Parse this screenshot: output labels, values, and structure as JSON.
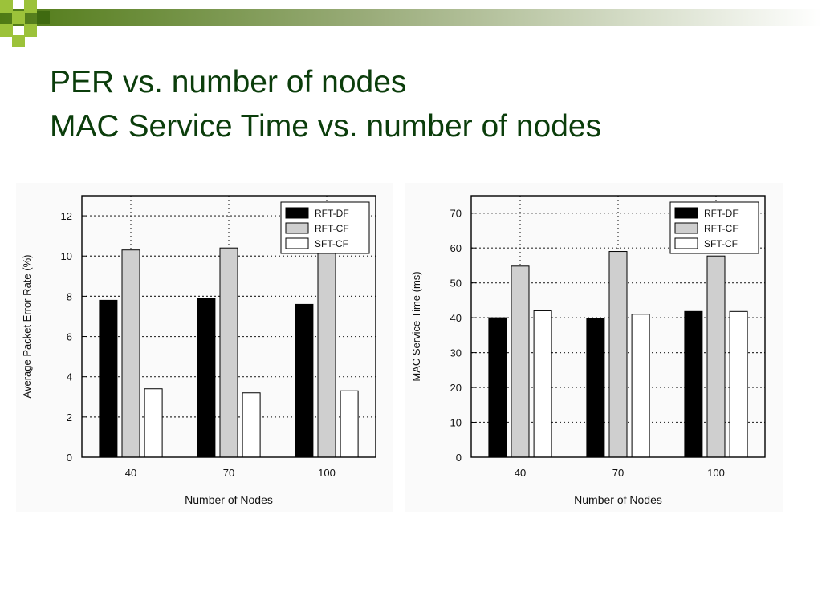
{
  "slide": {
    "title_line1": "PER vs. number of nodes",
    "title_line2": "MAC Service Time vs. number of nodes"
  },
  "colors": {
    "title": "#0b3d0b",
    "banner_dark": "#4f7a14",
    "banner_light": "#9cc23a",
    "rft_df": "#000000",
    "rft_cf": "#cfcfcf",
    "sft_cf": "#ffffff"
  },
  "chart_data": [
    {
      "type": "bar",
      "title": "",
      "xlabel": "Number of Nodes",
      "ylabel": "Average Packet Error Rate (%)",
      "categories": [
        "40",
        "70",
        "100"
      ],
      "ylim": [
        0,
        13
      ],
      "yticks": [
        0,
        2,
        4,
        6,
        8,
        10,
        12
      ],
      "grid": true,
      "legend_position": "top-right",
      "series": [
        {
          "name": "RFT-DF",
          "color": "#000000",
          "values": [
            7.8,
            7.9,
            7.6
          ]
        },
        {
          "name": "RFT-CF",
          "color": "#cfcfcf",
          "values": [
            10.3,
            10.4,
            10.2
          ]
        },
        {
          "name": "SFT-CF",
          "color": "#ffffff",
          "values": [
            3.4,
            3.2,
            3.3
          ]
        }
      ]
    },
    {
      "type": "bar",
      "title": "",
      "xlabel": "Number of Nodes",
      "ylabel": "MAC Service Time (ms)",
      "categories": [
        "40",
        "70",
        "100"
      ],
      "ylim": [
        0,
        75
      ],
      "yticks": [
        0,
        10,
        20,
        30,
        40,
        50,
        60,
        70
      ],
      "grid": true,
      "legend_position": "top-right",
      "series": [
        {
          "name": "RFT-DF",
          "color": "#000000",
          "values": [
            40,
            39.7,
            41.8
          ]
        },
        {
          "name": "RFT-CF",
          "color": "#cfcfcf",
          "values": [
            54.8,
            59,
            57.7
          ]
        },
        {
          "name": "SFT-CF",
          "color": "#ffffff",
          "values": [
            42,
            41,
            41.8
          ]
        }
      ]
    }
  ]
}
